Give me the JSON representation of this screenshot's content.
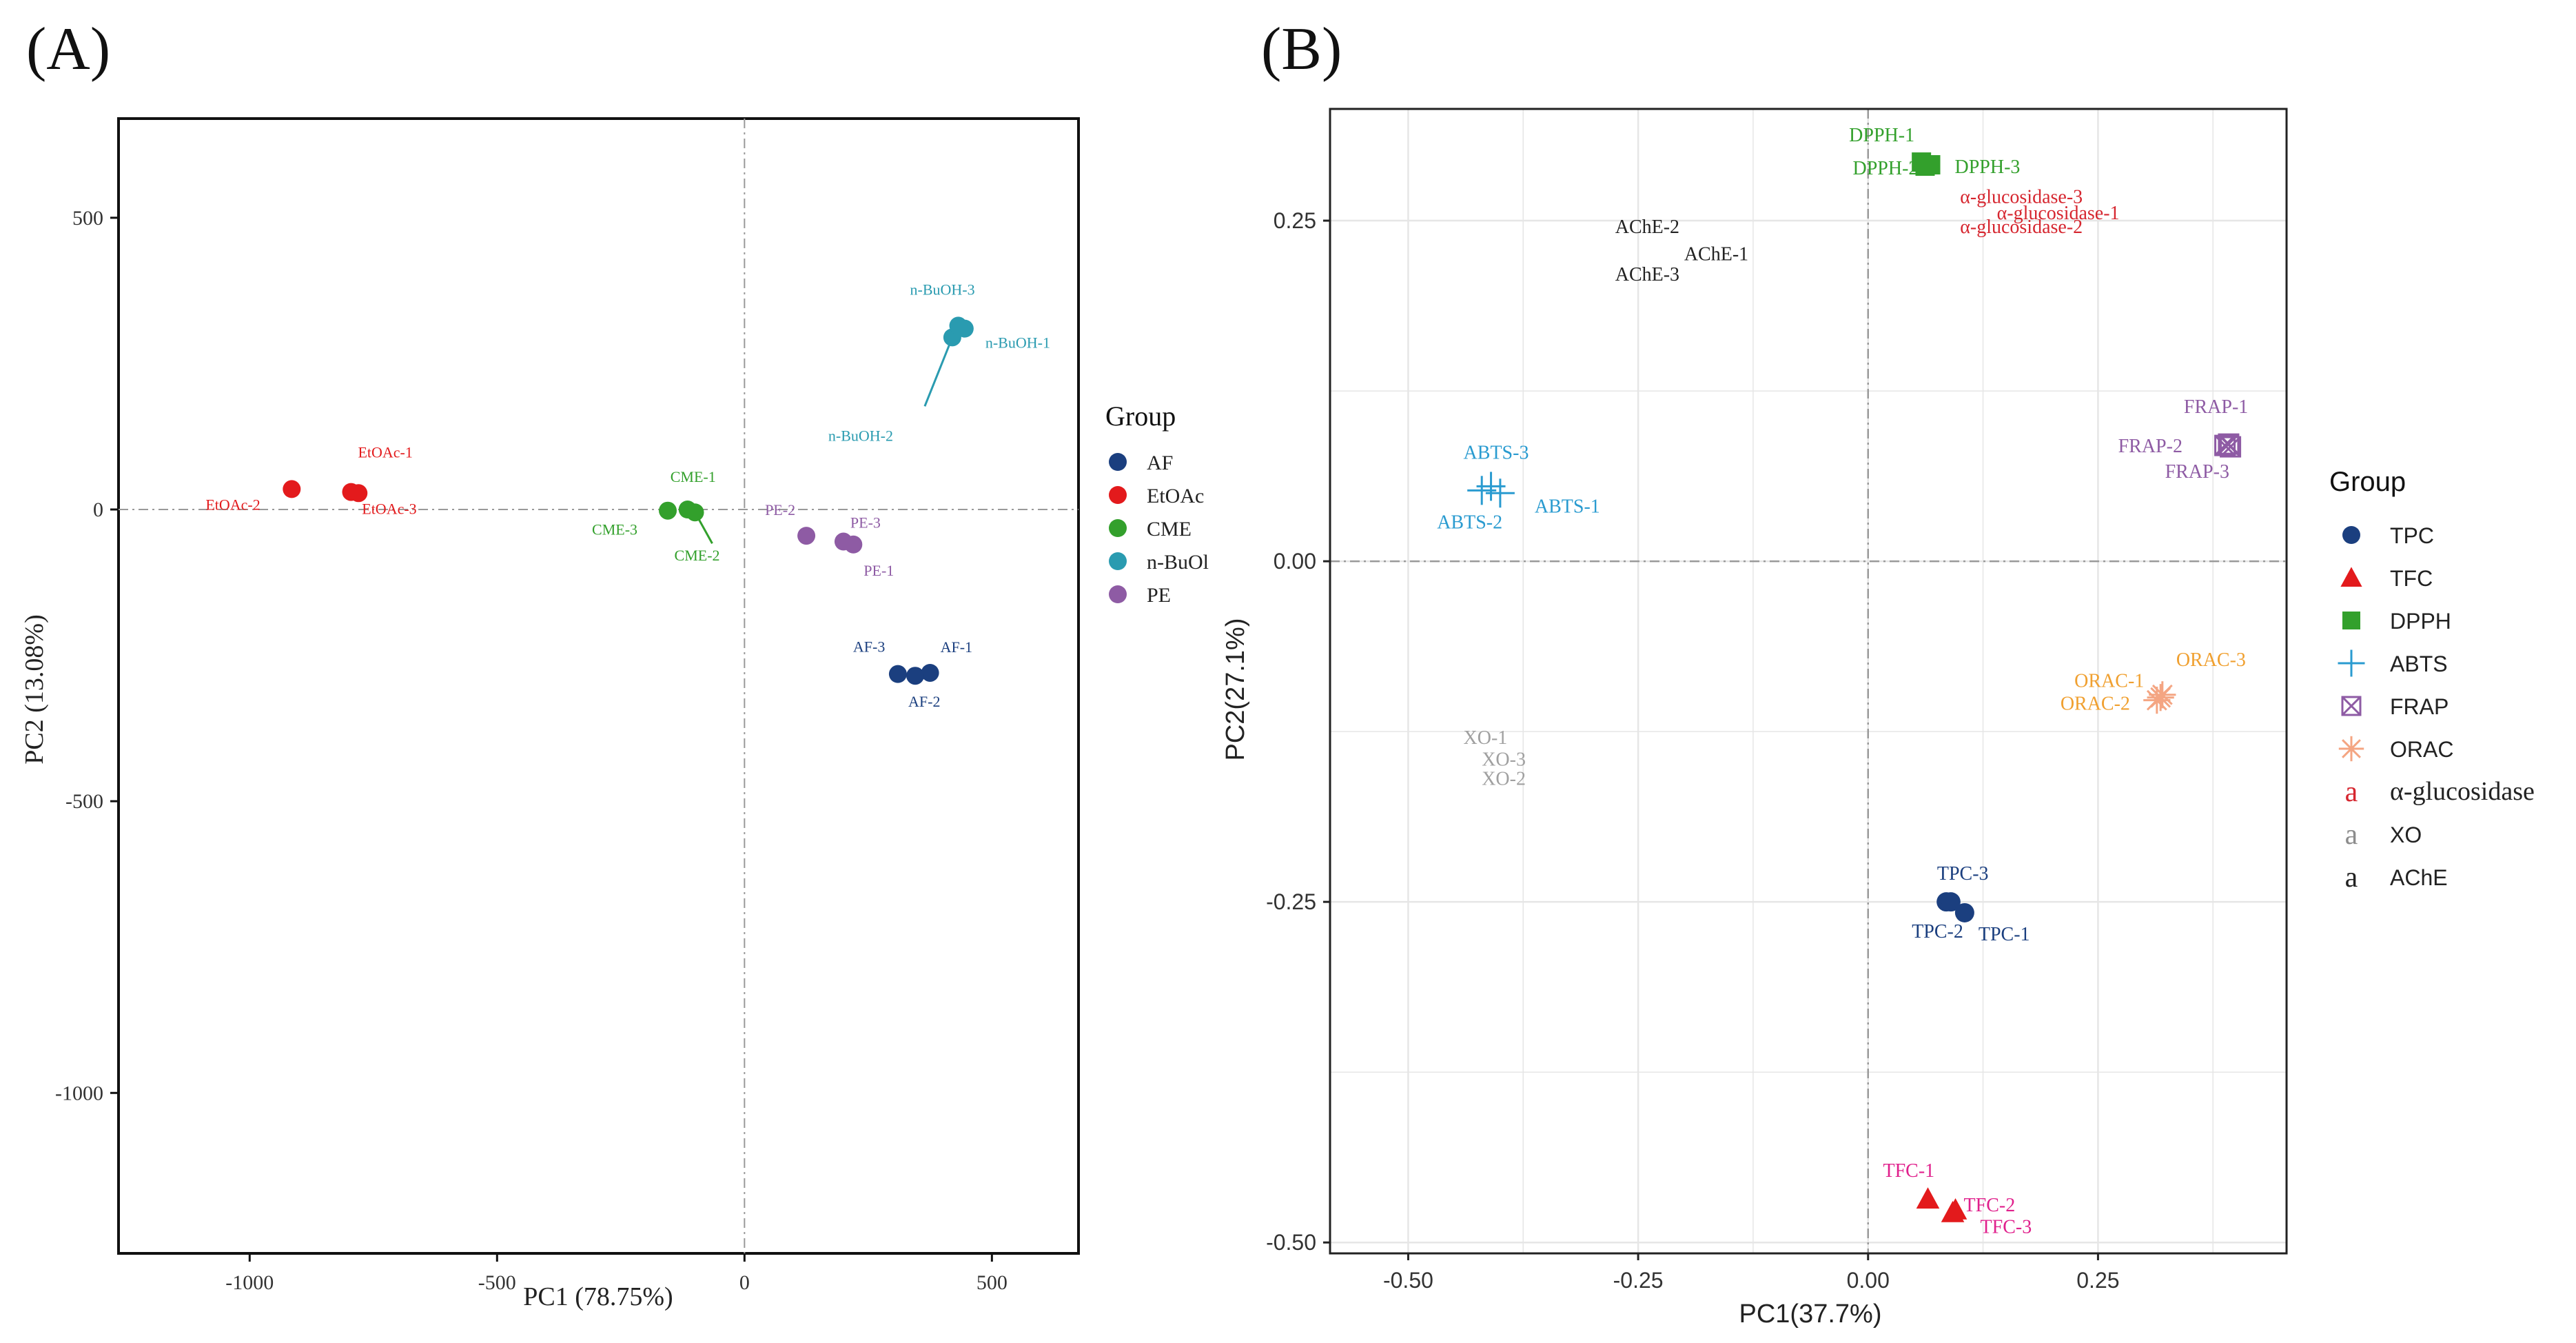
{
  "chart_data": [
    {
      "type": "scatter",
      "panel_label": "(A)",
      "xlabel": "PC1 (78.75%)",
      "ylabel": "PC2 (13.08%)",
      "xlim": [
        -1265,
        675
      ],
      "ylim": [
        -1275,
        670
      ],
      "xticks": [
        -1000,
        -500,
        0,
        500
      ],
      "xtick_labels": [
        "-1000",
        "-500",
        "0",
        "500"
      ],
      "yticks": [
        500,
        0,
        -500,
        -1000
      ],
      "ytick_labels": [
        "500",
        "0",
        "-500",
        "-1000"
      ],
      "grid": false,
      "legend": {
        "title": "Group",
        "position": "right",
        "entries": [
          {
            "label": "AF",
            "color": "#1b3f7f"
          },
          {
            "label": "EtOAc",
            "color": "#e31a1c"
          },
          {
            "label": "CME",
            "color": "#33a02c"
          },
          {
            "label": "n-BuOl",
            "color": "#2a9bb0"
          },
          {
            "label": "PE",
            "color": "#8e5ba4"
          }
        ]
      },
      "series": [
        {
          "name": "EtOAc",
          "color": "#e31a1c",
          "points": [
            {
              "label": "EtOAc-1",
              "x": -795,
              "y": 30
            },
            {
              "label": "EtOAc-2",
              "x": -915,
              "y": 35
            },
            {
              "label": "EtOAc-3",
              "x": -780,
              "y": 28
            }
          ]
        },
        {
          "name": "CME",
          "color": "#33a02c",
          "points": [
            {
              "label": "CME-1",
              "x": -115,
              "y": 0
            },
            {
              "label": "CME-2",
              "x": -100,
              "y": -5
            },
            {
              "label": "CME-3",
              "x": -155,
              "y": -2
            }
          ]
        },
        {
          "name": "n-BuOl",
          "color": "#2a9bb0",
          "points": [
            {
              "label": "n-BuOH-1",
              "x": 445,
              "y": 310
            },
            {
              "label": "n-BuOH-2",
              "x": 420,
              "y": 295
            },
            {
              "label": "n-BuOH-3",
              "x": 432,
              "y": 315
            }
          ]
        },
        {
          "name": "PE",
          "color": "#8e5ba4",
          "points": [
            {
              "label": "PE-1",
              "x": 220,
              "y": -60
            },
            {
              "label": "PE-2",
              "x": 125,
              "y": -45
            },
            {
              "label": "PE-3",
              "x": 200,
              "y": -55
            }
          ]
        },
        {
          "name": "AF",
          "color": "#1b3f7f",
          "points": [
            {
              "label": "AF-1",
              "x": 375,
              "y": -280
            },
            {
              "label": "AF-2",
              "x": 345,
              "y": -285
            },
            {
              "label": "AF-3",
              "x": 310,
              "y": -282
            }
          ]
        }
      ]
    },
    {
      "type": "scatter",
      "panel_label": "(B)",
      "xlabel": "PC1(37.7%)",
      "ylabel": "PC2(27.1%)",
      "xlim": [
        -0.585,
        0.455
      ],
      "ylim": [
        -0.508,
        0.332
      ],
      "xticks": [
        -0.5,
        -0.25,
        0,
        0.25
      ],
      "xtick_labels": [
        "-0.50",
        "-0.25",
        "0.00",
        "0.25"
      ],
      "yticks": [
        0.25,
        0,
        -0.25,
        -0.5
      ],
      "ytick_labels": [
        "0.25",
        "0.00",
        "-0.25",
        "-0.50"
      ],
      "grid": true,
      "legend": {
        "title": "Group",
        "position": "right",
        "entries": [
          {
            "label": "TPC",
            "color": "#1b3f7f",
            "marker": "circle"
          },
          {
            "label": "TFC",
            "color": "#e31a1c",
            "marker": "triangle"
          },
          {
            "label": "DPPH",
            "color": "#33a02c",
            "marker": "square"
          },
          {
            "label": "ABTS",
            "color": "#2a9bd0",
            "marker": "plus"
          },
          {
            "label": "FRAP",
            "color": "#8e5ba4",
            "marker": "boxcross"
          },
          {
            "label": "ORAC",
            "color": "#f4a582",
            "marker": "star"
          },
          {
            "label": "α-glucosidase",
            "color": "#d6262f",
            "marker": "text",
            "symbol": "a"
          },
          {
            "label": "XO",
            "color": "#8c8c8c",
            "marker": "text",
            "symbol": "a"
          },
          {
            "label": "AChE",
            "color": "#222222",
            "marker": "text",
            "symbol": "a"
          }
        ]
      },
      "series": [
        {
          "name": "TPC",
          "color": "#1b3f7f",
          "marker": "circle",
          "label_color": "#1b3f7f",
          "points": [
            {
              "label": "TPC-1",
              "x": 0.105,
              "y": -0.258
            },
            {
              "label": "TPC-2",
              "x": 0.085,
              "y": -0.25
            },
            {
              "label": "TPC-3",
              "x": 0.09,
              "y": -0.25
            }
          ]
        },
        {
          "name": "TFC",
          "color": "#e31a1c",
          "marker": "triangle",
          "label_color": "#e0208c",
          "points": [
            {
              "label": "TFC-1",
              "x": 0.065,
              "y": -0.468
            },
            {
              "label": "TFC-2",
              "x": 0.095,
              "y": -0.476
            },
            {
              "label": "TFC-3",
              "x": 0.092,
              "y": -0.478
            }
          ]
        },
        {
          "name": "DPPH",
          "color": "#33a02c",
          "marker": "square",
          "label_color": "#33a02c",
          "points": [
            {
              "label": "DPPH-1",
              "x": 0.058,
              "y": 0.293
            },
            {
              "label": "DPPH-2",
              "x": 0.062,
              "y": 0.29
            },
            {
              "label": "DPPH-3",
              "x": 0.068,
              "y": 0.291
            }
          ]
        },
        {
          "name": "ABTS",
          "color": "#2a9bd0",
          "marker": "plus",
          "label_color": "#2a9bd0",
          "points": [
            {
              "label": "ABTS-1",
              "x": -0.4,
              "y": 0.05
            },
            {
              "label": "ABTS-2",
              "x": -0.42,
              "y": 0.052
            },
            {
              "label": "ABTS-3",
              "x": -0.41,
              "y": 0.055
            }
          ]
        },
        {
          "name": "FRAP",
          "color": "#8e5ba4",
          "marker": "boxcross",
          "label_color": "#8e5ba4",
          "points": [
            {
              "label": "FRAP-1",
              "x": 0.392,
              "y": 0.086
            },
            {
              "label": "FRAP-2",
              "x": 0.388,
              "y": 0.085
            },
            {
              "label": "FRAP-3",
              "x": 0.394,
              "y": 0.084
            }
          ]
        },
        {
          "name": "ORAC",
          "color": "#f4a582",
          "marker": "star",
          "label_color": "#f0a030",
          "points": [
            {
              "label": "ORAC-1",
              "x": 0.318,
              "y": -0.1
            },
            {
              "label": "ORAC-2",
              "x": 0.314,
              "y": -0.102
            },
            {
              "label": "ORAC-3",
              "x": 0.32,
              "y": -0.098
            }
          ]
        },
        {
          "name": "α-glucosidase",
          "color": "#d6262f",
          "marker": "text",
          "label_color": "#d6262f",
          "points": [
            {
              "label": "α-glucosidase-1",
              "x": 0.14,
              "y": 0.255
            },
            {
              "label": "α-glucosidase-2",
              "x": 0.1,
              "y": 0.245
            },
            {
              "label": "α-glucosidase-3",
              "x": 0.1,
              "y": 0.267
            }
          ]
        },
        {
          "name": "XO",
          "color": "#8c8c8c",
          "marker": "text",
          "label_color": "#a0a0a0",
          "points": [
            {
              "label": "XO-1",
              "x": -0.44,
              "y": -0.13
            },
            {
              "label": "XO-2",
              "x": -0.42,
              "y": -0.16
            },
            {
              "label": "XO-3",
              "x": -0.42,
              "y": -0.146
            }
          ]
        },
        {
          "name": "AChE",
          "color": "#222222",
          "marker": "text",
          "label_color": "#222222",
          "points": [
            {
              "label": "AChE-1",
              "x": -0.2,
              "y": 0.225
            },
            {
              "label": "AChE-2",
              "x": -0.275,
              "y": 0.245
            },
            {
              "label": "AChE-3",
              "x": -0.275,
              "y": 0.21
            }
          ]
        }
      ]
    }
  ]
}
